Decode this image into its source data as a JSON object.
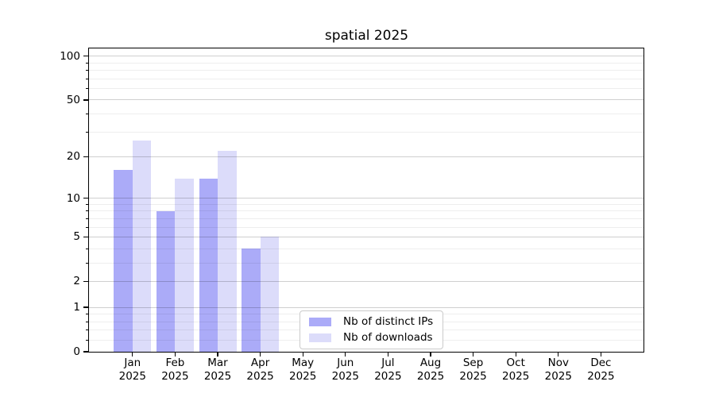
{
  "chart_data": {
    "type": "bar",
    "title": "spatial 2025",
    "x_axis": {
      "months": [
        "Jan",
        "Feb",
        "Mar",
        "Apr",
        "May",
        "Jun",
        "Jul",
        "Aug",
        "Sep",
        "Oct",
        "Nov",
        "Dec"
      ],
      "year": "2025"
    },
    "y_axis": {
      "scale": "log1p",
      "major_ticks": [
        0,
        1,
        2,
        5,
        10,
        20,
        50,
        100
      ],
      "minor_ticks": [
        0.2,
        0.4,
        0.6,
        0.8,
        3,
        4,
        6,
        7,
        8,
        9,
        30,
        40,
        60,
        70,
        80,
        90
      ],
      "max": 113
    },
    "series": [
      {
        "name": "Nb of distinct IPs",
        "color": "#ababf8",
        "values": [
          16,
          8,
          14,
          4,
          0,
          0,
          0,
          0,
          0,
          0,
          0,
          0
        ]
      },
      {
        "name": "Nb of downloads",
        "color": "#dcdcfa",
        "values": [
          26,
          14,
          22,
          5,
          0,
          0,
          0,
          0,
          0,
          0,
          0,
          0
        ]
      }
    ],
    "legend": {
      "position": "lower-center"
    },
    "grid": true
  }
}
